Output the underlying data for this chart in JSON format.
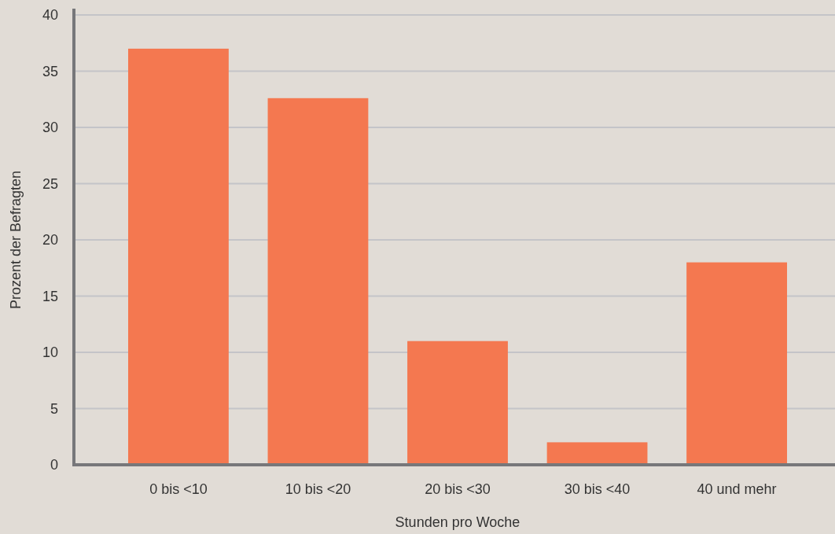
{
  "chart_data": {
    "type": "bar",
    "xlabel": "Stunden pro Woche",
    "ylabel": "Prozent der Befragten",
    "categories": [
      "0 bis <10",
      "10 bis <20",
      "20 bis <30",
      "30 bis <40",
      "40 und mehr"
    ],
    "values": [
      37,
      32.6,
      11,
      2,
      18
    ],
    "color": "#f47850",
    "ylim": [
      0,
      40
    ],
    "yticks": [
      0,
      5,
      10,
      15,
      20,
      25,
      30,
      35,
      40
    ],
    "grid": "y"
  }
}
